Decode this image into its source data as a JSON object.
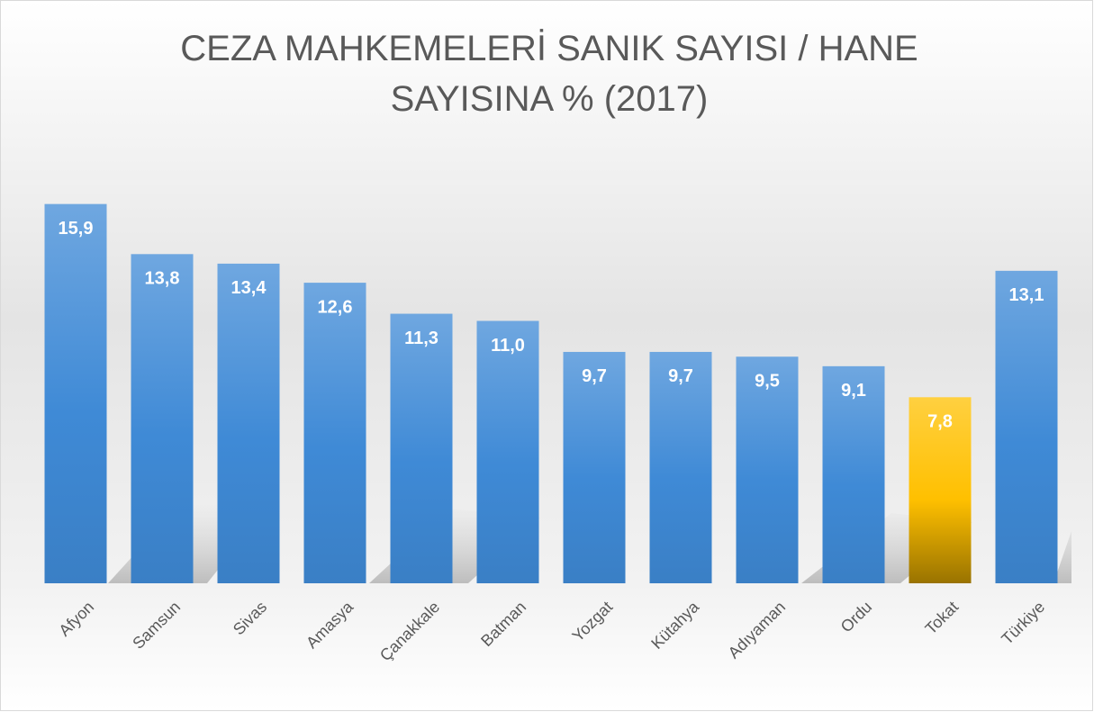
{
  "chart_data": {
    "type": "bar",
    "title": "CEZA MAHKEMELERİ SANIK SAYISI / HANE SAYISINA % (2017)",
    "categories": [
      "Afyon",
      "Samsun",
      "Sivas",
      "Amasya",
      "Çanakkale",
      "Batman",
      "Yozgat",
      "Kütahya",
      "Adıyaman",
      "Ordu",
      "Tokat",
      "Türkiye"
    ],
    "values": [
      15.9,
      13.8,
      13.4,
      12.6,
      11.3,
      11.0,
      9.7,
      9.7,
      9.5,
      9.1,
      7.8,
      13.1
    ],
    "value_labels": [
      "15,9",
      "13,8",
      "13,4",
      "12,6",
      "11,3",
      "11,0",
      "9,7",
      "9,7",
      "9,5",
      "9,1",
      "7,8",
      "13,1"
    ],
    "colors": [
      "#3f8ad6",
      "#3f8ad6",
      "#3f8ad6",
      "#3f8ad6",
      "#3f8ad6",
      "#3f8ad6",
      "#3f8ad6",
      "#3f8ad6",
      "#3f8ad6",
      "#3f8ad6",
      "#ffc000",
      "#3f8ad6"
    ],
    "ylim": [
      0,
      16
    ]
  }
}
